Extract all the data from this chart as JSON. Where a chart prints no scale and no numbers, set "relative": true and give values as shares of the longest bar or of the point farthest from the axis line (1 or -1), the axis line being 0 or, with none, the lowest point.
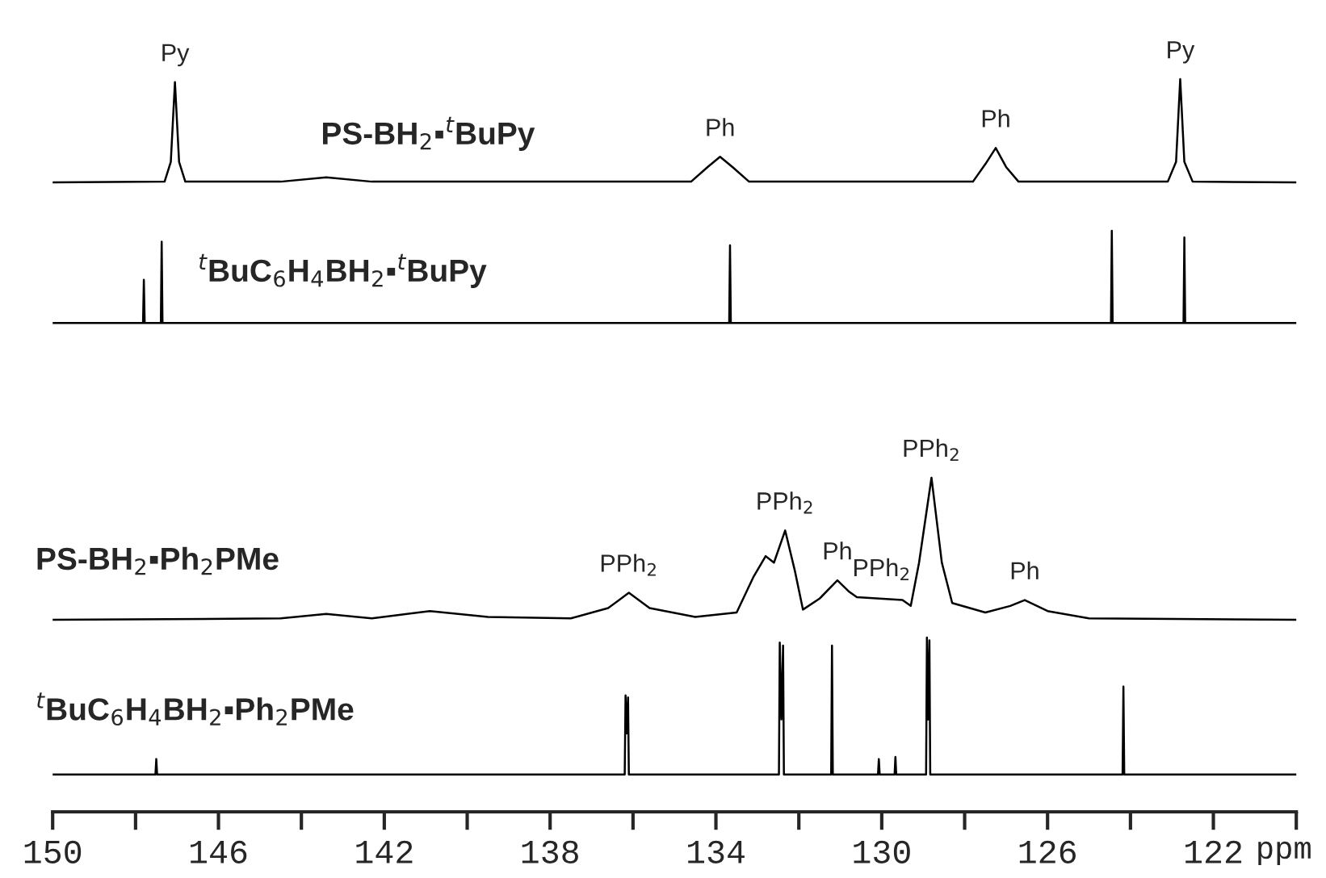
{
  "chart_data": {
    "type": "line",
    "relative": true,
    "xlabel": "ppm",
    "xlim": [
      150,
      120
    ],
    "xticks": [
      150,
      {
        "value": 148,
        "label": null
      },
      146,
      {
        "value": 144,
        "label": null
      },
      142,
      {
        "value": 140,
        "label": null
      },
      138,
      {
        "value": 136,
        "label": null
      },
      134,
      {
        "value": 132,
        "label": null
      },
      130,
      {
        "value": 128,
        "label": null
      },
      126,
      {
        "value": 124,
        "label": null
      },
      122,
      {
        "value": 120,
        "label": null
      }
    ],
    "series": [
      {
        "color": "#000000",
        "x": [
          150,
          147.3,
          147.15,
          147.05,
          146.95,
          146.8,
          144.5,
          143.4,
          142.3,
          134.6,
          134.2,
          133.9,
          133.6,
          133.2,
          127.8,
          127.5,
          127.25,
          127.0,
          126.7,
          123.1,
          122.9,
          122.8,
          122.7,
          122.5,
          120
        ],
        "values": [
          0.859,
          0.86,
          0.887,
          0.996,
          0.887,
          0.86,
          0.86,
          0.866,
          0.86,
          0.86,
          0.88,
          0.894,
          0.88,
          0.86,
          0.86,
          0.884,
          0.906,
          0.88,
          0.86,
          0.86,
          0.887,
          1.0,
          0.887,
          0.86,
          0.859
        ]
      },
      {
        "color": "#000000",
        "x": [
          150,
          147.82,
          147.8,
          147.78,
          147.39,
          147.37,
          147.35,
          133.68,
          133.66,
          133.64,
          124.47,
          124.45,
          124.43,
          122.72,
          122.7,
          122.68,
          120
        ],
        "values": [
          0.667,
          0.667,
          0.726,
          0.667,
          0.667,
          0.778,
          0.667,
          0.667,
          0.773,
          0.667,
          0.667,
          0.793,
          0.667,
          0.667,
          0.784,
          0.667,
          0.667
        ]
      },
      {
        "color": "#000000",
        "x": [
          150,
          144.5,
          143.4,
          142.3,
          140.9,
          139.5,
          137.5,
          136.6,
          136.1,
          135.6,
          134.5,
          133.5,
          133.1,
          132.8,
          132.6,
          132.33,
          132.1,
          131.9,
          131.5,
          131.07,
          130.8,
          130.6,
          129.5,
          129.3,
          129.1,
          128.8,
          128.55,
          128.3,
          127.5,
          126.9,
          126.55,
          126.0,
          125.0,
          120
        ],
        "values": [
          0.262,
          0.264,
          0.27,
          0.264,
          0.274,
          0.266,
          0.264,
          0.278,
          0.299,
          0.278,
          0.266,
          0.272,
          0.32,
          0.349,
          0.34,
          0.384,
          0.33,
          0.276,
          0.291,
          0.316,
          0.301,
          0.293,
          0.289,
          0.281,
          0.34,
          0.456,
          0.34,
          0.285,
          0.272,
          0.281,
          0.289,
          0.274,
          0.264,
          0.262
        ]
      },
      {
        "color": "#000000",
        "x": [
          150,
          147.52,
          147.5,
          147.48,
          136.2,
          136.18,
          136.15,
          136.12,
          136.1,
          132.48,
          132.46,
          132.42,
          132.38,
          132.36,
          131.22,
          131.2,
          131.18,
          130.09,
          130.07,
          130.05,
          129.69,
          129.67,
          129.65,
          128.93,
          128.91,
          128.88,
          128.85,
          128.83,
          124.19,
          124.17,
          124.15,
          120
        ],
        "values": [
          0.051,
          0.051,
          0.072,
          0.051,
          0.051,
          0.159,
          0.107,
          0.156,
          0.051,
          0.051,
          0.231,
          0.126,
          0.227,
          0.051,
          0.051,
          0.227,
          0.051,
          0.051,
          0.072,
          0.051,
          0.051,
          0.075,
          0.051,
          0.051,
          0.238,
          0.126,
          0.234,
          0.051,
          0.051,
          0.171,
          0.051,
          0.051
        ]
      }
    ],
    "annotations": [
      "PS-BH$_{2}$▪$^{t}$BuPy",
      "$^{t}$BuC$_{6}$H$_{4}$BH$_{2}$▪$^{t}$BuPy",
      "PS-BH$_{2}$▪Ph$_{2}$PMe",
      "$^{t}$BuC$_{6}$H$_{4}$BH$_{2}$▪Ph$_{2}$PMe",
      {
        "text": "Py",
        "x": 147.05,
        "y": 0.996
      },
      {
        "text": "Ph",
        "x": 133.9,
        "y": 0.894
      },
      {
        "text": "Ph",
        "x": 127.25,
        "y": 0.906
      },
      {
        "text": "Py",
        "x": 122.8,
        "y": 1.0
      },
      {
        "text": "PPh$_{2}$",
        "x": 136.1,
        "y": 0.299
      },
      {
        "text": "PPh$_{2}$",
        "x": 132.33,
        "y": 0.384
      },
      {
        "text": "Ph",
        "x": 131.07,
        "y": 0.316
      },
      {
        "text": "PPh$_{2}$",
        "x": 130.0,
        "y": 0.293
      },
      {
        "text": "PPh$_{2}$",
        "x": 128.8,
        "y": 0.456
      },
      {
        "text": "Ph",
        "x": 126.55,
        "y": 0.289
      }
    ]
  }
}
